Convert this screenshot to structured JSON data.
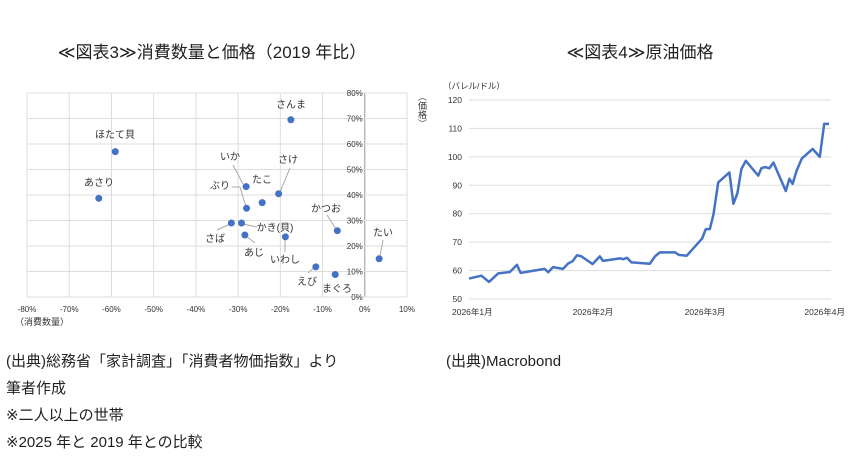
{
  "chart_data": [
    {
      "type": "scatter",
      "title": "≪図表3≫消費数量と価格（2019 年比）",
      "xlabel": "（消費数量）",
      "ylabel": "（価格）",
      "xlim": [
        -80,
        10
      ],
      "ylim": [
        0,
        80
      ],
      "x_ticks": [
        "-80%",
        "-70%",
        "-60%",
        "-50%",
        "-40%",
        "-30%",
        "-20%",
        "-10%",
        "0%",
        "10%"
      ],
      "y_ticks": [
        "0%",
        "10%",
        "20%",
        "30%",
        "40%",
        "50%",
        "60%",
        "70%",
        "80%"
      ],
      "grid": true,
      "color": "#4472C4",
      "points": [
        {
          "label": "さんま",
          "x": -17.5,
          "y": 69.5
        },
        {
          "label": "ほたて貝",
          "x": -59.1,
          "y": 57.0
        },
        {
          "label": "あさり",
          "x": -63.0,
          "y": 38.7
        },
        {
          "label": "いか",
          "x": -28.1,
          "y": 43.3
        },
        {
          "label": "ぶり",
          "x": -28.0,
          "y": 34.8
        },
        {
          "label": "たこ",
          "x": -24.3,
          "y": 37.0
        },
        {
          "label": "さけ",
          "x": -20.4,
          "y": 40.5
        },
        {
          "label": "さば",
          "x": -31.6,
          "y": 29.0
        },
        {
          "label": "かき(貝)",
          "x": -29.2,
          "y": 29.0
        },
        {
          "label": "あじ",
          "x": -28.4,
          "y": 24.3
        },
        {
          "label": "いわし",
          "x": -18.8,
          "y": 23.6
        },
        {
          "label": "かつお",
          "x": -6.5,
          "y": 26.0
        },
        {
          "label": "たい",
          "x": 3.4,
          "y": 15.0
        },
        {
          "label": "えび",
          "x": -11.6,
          "y": 11.8
        },
        {
          "label": "まぐろ",
          "x": -7.0,
          "y": 8.8
        }
      ]
    },
    {
      "type": "line",
      "title": "≪図表4≫原油価格",
      "ylabel": "（バレル/ドル）",
      "ylim": [
        50,
        120
      ],
      "y_ticks": [
        50,
        60,
        70,
        80,
        90,
        100,
        110,
        120
      ],
      "x_ticks": [
        {
          "label": "2026年1月",
          "day": 0
        },
        {
          "label": "2026年2月",
          "day": 31
        },
        {
          "label": "2026年3月",
          "day": 59
        },
        {
          "label": "2026年4月",
          "day": 90
        }
      ],
      "xlim_days": [
        0,
        90
      ],
      "grid": true,
      "color": "#4472C4",
      "series": [
        {
          "name": "原油価格",
          "days": [
            0,
            3.1,
            5.0,
            7.3,
            10.2,
            12.0,
            12.9,
            18.9,
            19.8,
            21.0,
            23.5,
            24.8,
            25.9,
            27.0,
            28.1,
            30.9,
            32.7,
            33.5,
            37.7,
            38.5,
            39.5,
            40.6,
            45.2,
            46.5,
            47.7,
            51.5,
            52.5,
            54.4,
            56.9,
            58.3,
            59.2,
            60.2,
            61.1,
            62.3,
            65.1,
            66.1,
            67.1,
            68.1,
            69.2,
            72.3,
            73.1,
            74.0,
            75.1,
            76.1,
            79.2,
            80.1,
            80.9,
            81.9,
            83.2,
            85.9,
            87.7,
            88.8,
            90.0
          ],
          "values": [
            57.2,
            58.2,
            56.0,
            59.0,
            59.5,
            62.0,
            59.2,
            60.6,
            59.4,
            61.2,
            60.6,
            62.5,
            63.3,
            65.4,
            65.0,
            62.3,
            65.0,
            63.4,
            64.3,
            64.0,
            64.5,
            62.9,
            62.4,
            65.0,
            66.4,
            66.4,
            65.5,
            65.2,
            69.1,
            71.3,
            74.6,
            74.6,
            79.6,
            91.0,
            94.5,
            83.5,
            87.2,
            95.7,
            98.6,
            93.4,
            96.0,
            96.4,
            96.0,
            98.0,
            88.0,
            92.3,
            90.5,
            95.1,
            99.4,
            102.8,
            100.0,
            111.6,
            111.6
          ]
        }
      ]
    }
  ],
  "notes_left": [
    "(出典)総務省「家計調査」「消費者物価指数」より",
    "筆者作成",
    "※二人以上の世帯",
    "※2025 年と 2019 年との比較"
  ],
  "notes_right": [
    "(出典)Macrobond"
  ]
}
